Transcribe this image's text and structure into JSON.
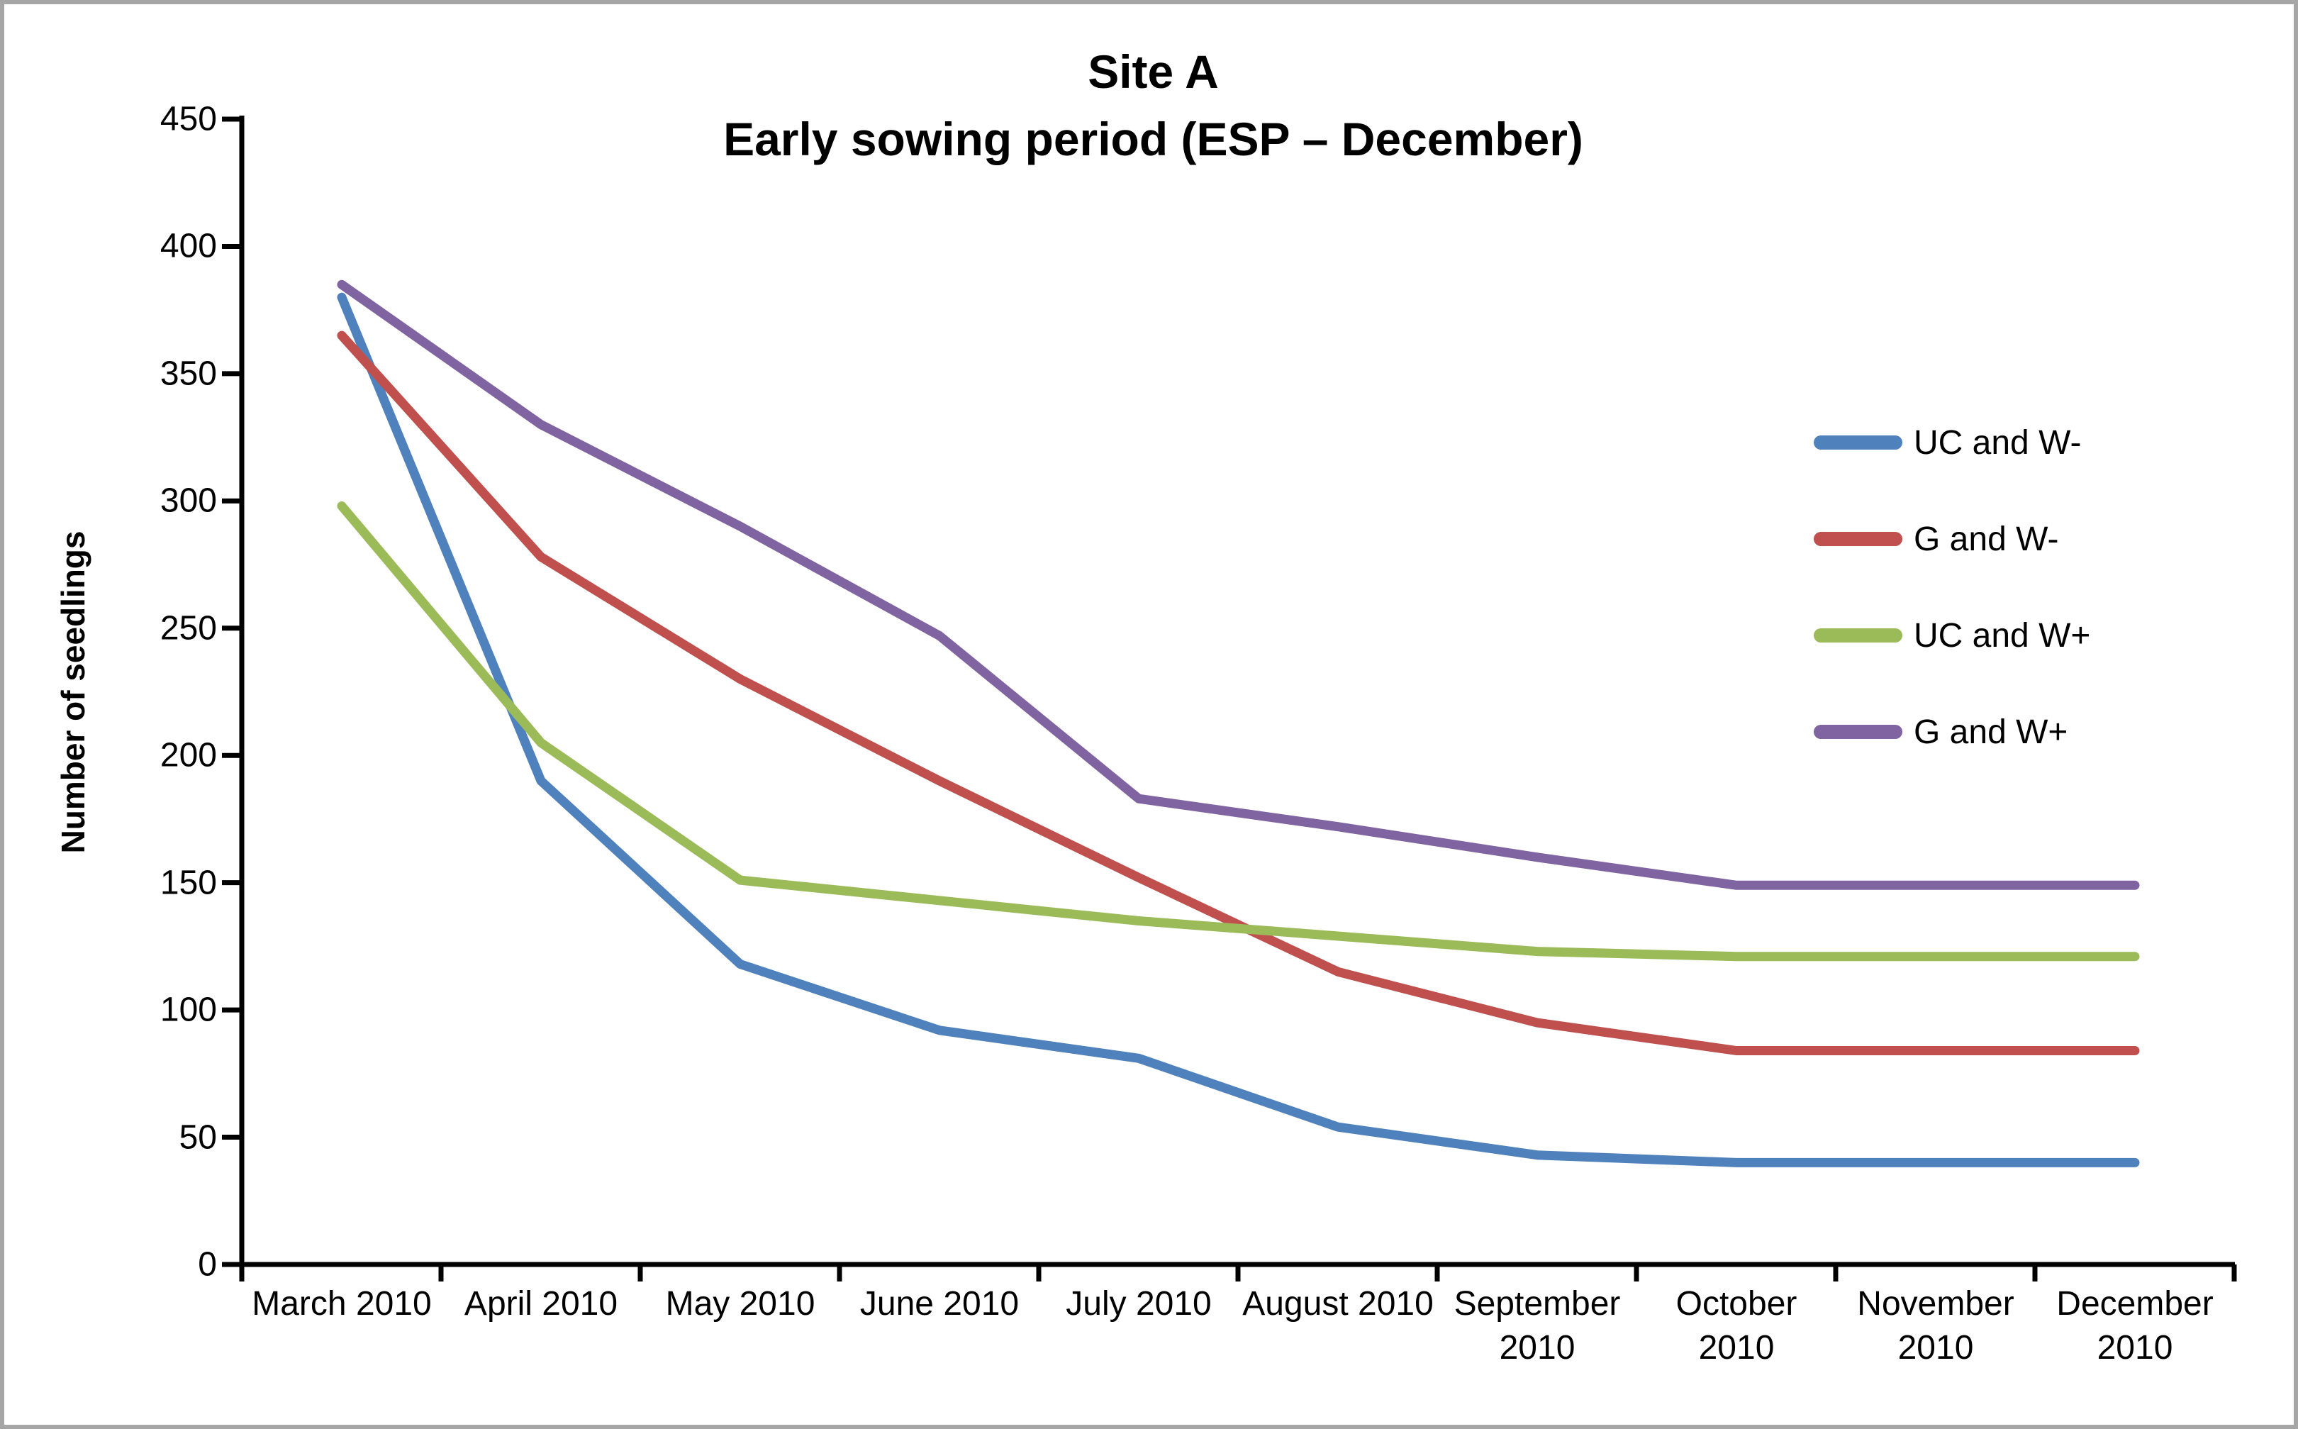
{
  "figure": {
    "title_line1": "Site A",
    "title_line2": "Early sowing period (ESP – December)",
    "border_color": "#A6A6A6",
    "background_color": "#FFFFFF"
  },
  "chart_data": {
    "type": "line",
    "title": "Site A",
    "subtitle": "Early sowing period (ESP – December)",
    "xlabel": "",
    "ylabel": "Number of seedlings",
    "ylim": [
      0,
      450
    ],
    "ytick_step": 50,
    "yticks": [
      450,
      400,
      350,
      300,
      250,
      200,
      150,
      100,
      50,
      0
    ],
    "grid": false,
    "legend_position": "right",
    "axis_color": "#000000",
    "categories": [
      "March 2010",
      "April 2010",
      "May 2010",
      "June 2010",
      "July 2010",
      "August 2010",
      "September 2010",
      "October 2010",
      "November 2010",
      "December 2010"
    ],
    "x_tick_labels": [
      "March 2010",
      "April 2010",
      "May 2010",
      "June 2010",
      "July 2010",
      "August 2010",
      "September\n2010",
      "October\n2010",
      "November\n2010",
      "December\n2010"
    ],
    "series": [
      {
        "id": "uc-w-minus",
        "name": "UC and W-",
        "color": "#4F81BD",
        "values": [
          380,
          190,
          118,
          92,
          81,
          54,
          43,
          40,
          40,
          40
        ]
      },
      {
        "id": "g-w-minus",
        "name": "G and W-",
        "color": "#C0504D",
        "values": [
          365,
          278,
          230,
          190,
          152,
          115,
          95,
          84,
          84,
          84
        ]
      },
      {
        "id": "uc-w-plus",
        "name": "UC and W+",
        "color": "#9BBB59",
        "values": [
          298,
          205,
          151,
          143,
          135,
          129,
          123,
          121,
          121,
          121
        ]
      },
      {
        "id": "g-w-plus",
        "name": "G and W+",
        "color": "#8064A2",
        "values": [
          385,
          330,
          290,
          247,
          183,
          172,
          160,
          149,
          149,
          149
        ]
      }
    ]
  }
}
